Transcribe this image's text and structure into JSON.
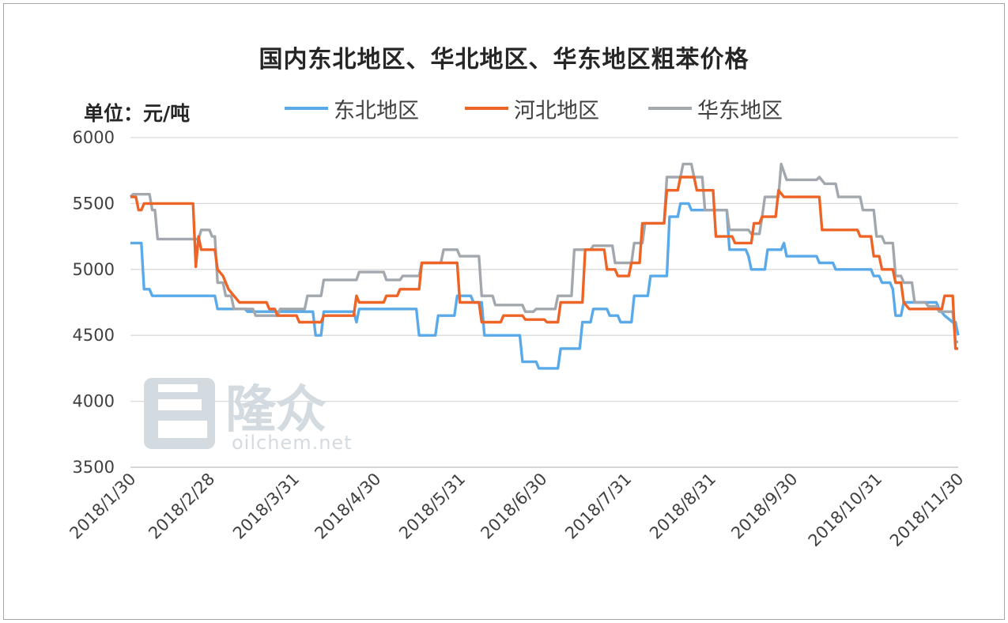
{
  "chart_data": {
    "type": "line",
    "title": "国内东北地区、华北地区、华东地区粗苯价格",
    "unit_label": "单位：元/吨",
    "ylim": [
      3500,
      6000
    ],
    "yticks": [
      3500,
      4000,
      4500,
      5000,
      5500,
      6000
    ],
    "xlim": [
      "2018/1/30",
      "2018/11/30"
    ],
    "xticks": [
      "2018/1/30",
      "2018/2/28",
      "2018/3/31",
      "2018/4/30",
      "2018/5/31",
      "2018/6/30",
      "2018/7/31",
      "2018/8/31",
      "2018/9/30",
      "2018/10/31",
      "2018/11/30"
    ],
    "grid": true,
    "legend_position": "top",
    "series": [
      {
        "name": "东北地区",
        "color": "#5aaae9",
        "points": [
          [
            "2018/1/30",
            5200
          ],
          [
            "2018/2/3",
            5200
          ],
          [
            "2018/2/4",
            4850
          ],
          [
            "2018/2/6",
            4850
          ],
          [
            "2018/2/7",
            4800
          ],
          [
            "2018/3/2",
            4800
          ],
          [
            "2018/3/3",
            4700
          ],
          [
            "2018/3/13",
            4700
          ],
          [
            "2018/3/14",
            4680
          ],
          [
            "2018/4/7",
            4680
          ],
          [
            "2018/4/8",
            4500
          ],
          [
            "2018/4/10",
            4500
          ],
          [
            "2018/4/11",
            4680
          ],
          [
            "2018/4/22",
            4680
          ],
          [
            "2018/4/23",
            4600
          ],
          [
            "2018/4/24",
            4700
          ],
          [
            "2018/5/15",
            4700
          ],
          [
            "2018/5/16",
            4500
          ],
          [
            "2018/5/22",
            4500
          ],
          [
            "2018/5/23",
            4650
          ],
          [
            "2018/5/29",
            4650
          ],
          [
            "2018/5/30",
            4800
          ],
          [
            "2018/6/4",
            4800
          ],
          [
            "2018/6/5",
            4750
          ],
          [
            "2018/6/8",
            4750
          ],
          [
            "2018/6/9",
            4500
          ],
          [
            "2018/6/22",
            4500
          ],
          [
            "2018/6/23",
            4300
          ],
          [
            "2018/6/28",
            4300
          ],
          [
            "2018/6/29",
            4250
          ],
          [
            "2018/7/6",
            4250
          ],
          [
            "2018/7/7",
            4400
          ],
          [
            "2018/7/14",
            4400
          ],
          [
            "2018/7/15",
            4600
          ],
          [
            "2018/7/18",
            4600
          ],
          [
            "2018/7/19",
            4700
          ],
          [
            "2018/7/24",
            4700
          ],
          [
            "2018/7/25",
            4650
          ],
          [
            "2018/7/28",
            4650
          ],
          [
            "2018/7/29",
            4600
          ],
          [
            "2018/8/2",
            4600
          ],
          [
            "2018/8/3",
            4800
          ],
          [
            "2018/8/8",
            4800
          ],
          [
            "2018/8/9",
            4950
          ],
          [
            "2018/8/15",
            4950
          ],
          [
            "2018/8/16",
            5400
          ],
          [
            "2018/8/19",
            5400
          ],
          [
            "2018/8/20",
            5500
          ],
          [
            "2018/8/23",
            5500
          ],
          [
            "2018/8/24",
            5450
          ],
          [
            "2018/9/6",
            5450
          ],
          [
            "2018/9/7",
            5150
          ],
          [
            "2018/9/13",
            5150
          ],
          [
            "2018/9/14",
            5100
          ],
          [
            "2018/9/15",
            5000
          ],
          [
            "2018/9/20",
            5000
          ],
          [
            "2018/9/21",
            5150
          ],
          [
            "2018/9/26",
            5150
          ],
          [
            "2018/9/27",
            5200
          ],
          [
            "2018/9/28",
            5100
          ],
          [
            "2018/10/9",
            5100
          ],
          [
            "2018/10/10",
            5050
          ],
          [
            "2018/10/15",
            5050
          ],
          [
            "2018/10/16",
            5000
          ],
          [
            "2018/10/29",
            5000
          ],
          [
            "2018/10/30",
            4950
          ],
          [
            "2018/11/1",
            4950
          ],
          [
            "2018/11/2",
            4900
          ],
          [
            "2018/11/5",
            4900
          ],
          [
            "2018/11/6",
            4850
          ],
          [
            "2018/11/7",
            4650
          ],
          [
            "2018/11/9",
            4650
          ],
          [
            "2018/11/10",
            4750
          ],
          [
            "2018/11/22",
            4750
          ],
          [
            "2018/11/23",
            4700
          ],
          [
            "2018/11/25",
            4650
          ],
          [
            "2018/11/28",
            4600
          ],
          [
            "2018/11/29",
            4600
          ],
          [
            "2018/11/30",
            4500
          ]
        ]
      },
      {
        "name": "河北地区",
        "color": "#ed6426",
        "points": [
          [
            "2018/1/30",
            5550
          ],
          [
            "2018/2/1",
            5550
          ],
          [
            "2018/2/2",
            5450
          ],
          [
            "2018/2/3",
            5450
          ],
          [
            "2018/2/4",
            5500
          ],
          [
            "2018/2/22",
            5500
          ],
          [
            "2018/2/23",
            5020
          ],
          [
            "2018/2/24",
            5250
          ],
          [
            "2018/2/25",
            5150
          ],
          [
            "2018/3/2",
            5150
          ],
          [
            "2018/3/3",
            5000
          ],
          [
            "2018/3/5",
            4950
          ],
          [
            "2018/3/7",
            4850
          ],
          [
            "2018/3/9",
            4800
          ],
          [
            "2018/3/11",
            4750
          ],
          [
            "2018/3/21",
            4750
          ],
          [
            "2018/3/22",
            4700
          ],
          [
            "2018/3/24",
            4700
          ],
          [
            "2018/3/25",
            4650
          ],
          [
            "2018/4/1",
            4650
          ],
          [
            "2018/4/2",
            4600
          ],
          [
            "2018/4/10",
            4600
          ],
          [
            "2018/4/11",
            4650
          ],
          [
            "2018/4/22",
            4650
          ],
          [
            "2018/4/23",
            4800
          ],
          [
            "2018/4/24",
            4750
          ],
          [
            "2018/5/3",
            4750
          ],
          [
            "2018/5/4",
            4800
          ],
          [
            "2018/5/8",
            4800
          ],
          [
            "2018/5/9",
            4850
          ],
          [
            "2018/5/16",
            4850
          ],
          [
            "2018/5/17",
            5050
          ],
          [
            "2018/5/30",
            5050
          ],
          [
            "2018/5/31",
            4750
          ],
          [
            "2018/6/7",
            4750
          ],
          [
            "2018/6/8",
            4600
          ],
          [
            "2018/6/15",
            4600
          ],
          [
            "2018/6/16",
            4650
          ],
          [
            "2018/6/23",
            4650
          ],
          [
            "2018/6/24",
            4620
          ],
          [
            "2018/7/1",
            4620
          ],
          [
            "2018/7/2",
            4600
          ],
          [
            "2018/7/6",
            4600
          ],
          [
            "2018/7/7",
            4750
          ],
          [
            "2018/7/15",
            4750
          ],
          [
            "2018/7/16",
            5150
          ],
          [
            "2018/7/23",
            5150
          ],
          [
            "2018/7/24",
            5000
          ],
          [
            "2018/7/27",
            5000
          ],
          [
            "2018/7/28",
            4950
          ],
          [
            "2018/8/1",
            4950
          ],
          [
            "2018/8/2",
            5050
          ],
          [
            "2018/8/5",
            5050
          ],
          [
            "2018/8/6",
            5350
          ],
          [
            "2018/8/14",
            5350
          ],
          [
            "2018/8/15",
            5600
          ],
          [
            "2018/8/19",
            5600
          ],
          [
            "2018/8/20",
            5700
          ],
          [
            "2018/8/25",
            5700
          ],
          [
            "2018/8/26",
            5600
          ],
          [
            "2018/9/1",
            5600
          ],
          [
            "2018/9/2",
            5250
          ],
          [
            "2018/9/8",
            5250
          ],
          [
            "2018/9/9",
            5200
          ],
          [
            "2018/9/15",
            5200
          ],
          [
            "2018/9/16",
            5350
          ],
          [
            "2018/9/18",
            5350
          ],
          [
            "2018/9/19",
            5400
          ],
          [
            "2018/9/24",
            5400
          ],
          [
            "2018/9/25",
            5600
          ],
          [
            "2018/9/27",
            5550
          ],
          [
            "2018/10/10",
            5550
          ],
          [
            "2018/10/11",
            5300
          ],
          [
            "2018/10/24",
            5300
          ],
          [
            "2018/10/25",
            5250
          ],
          [
            "2018/10/29",
            5250
          ],
          [
            "2018/10/30",
            5100
          ],
          [
            "2018/11/1",
            5100
          ],
          [
            "2018/11/2",
            5000
          ],
          [
            "2018/11/6",
            5000
          ],
          [
            "2018/11/7",
            4900
          ],
          [
            "2018/11/9",
            4900
          ],
          [
            "2018/11/10",
            4750
          ],
          [
            "2018/11/12",
            4700
          ],
          [
            "2018/11/24",
            4700
          ],
          [
            "2018/11/25",
            4800
          ],
          [
            "2018/11/28",
            4800
          ],
          [
            "2018/11/29",
            4400
          ],
          [
            "2018/11/30",
            4400
          ]
        ]
      },
      {
        "name": "华东地区",
        "color": "#a2a8ad",
        "points": [
          [
            "2018/1/30",
            5550
          ],
          [
            "2018/1/31",
            5570
          ],
          [
            "2018/2/6",
            5570
          ],
          [
            "2018/2/7",
            5450
          ],
          [
            "2018/2/8",
            5450
          ],
          [
            "2018/2/9",
            5230
          ],
          [
            "2018/2/24",
            5230
          ],
          [
            "2018/2/25",
            5300
          ],
          [
            "2018/2/28",
            5300
          ],
          [
            "2018/3/1",
            5250
          ],
          [
            "2018/3/2",
            5250
          ],
          [
            "2018/3/3",
            4900
          ],
          [
            "2018/3/5",
            4900
          ],
          [
            "2018/3/6",
            4800
          ],
          [
            "2018/3/8",
            4800
          ],
          [
            "2018/3/9",
            4700
          ],
          [
            "2018/3/16",
            4700
          ],
          [
            "2018/3/17",
            4650
          ],
          [
            "2018/3/25",
            4650
          ],
          [
            "2018/3/26",
            4700
          ],
          [
            "2018/4/4",
            4700
          ],
          [
            "2018/4/5",
            4800
          ],
          [
            "2018/4/10",
            4800
          ],
          [
            "2018/4/11",
            4920
          ],
          [
            "2018/4/23",
            4920
          ],
          [
            "2018/4/24",
            4980
          ],
          [
            "2018/5/3",
            4980
          ],
          [
            "2018/5/4",
            4920
          ],
          [
            "2018/5/9",
            4920
          ],
          [
            "2018/5/10",
            4950
          ],
          [
            "2018/5/16",
            4950
          ],
          [
            "2018/5/17",
            5050
          ],
          [
            "2018/5/24",
            5050
          ],
          [
            "2018/5/25",
            5150
          ],
          [
            "2018/5/30",
            5150
          ],
          [
            "2018/5/31",
            5100
          ],
          [
            "2018/6/7",
            5100
          ],
          [
            "2018/6/8",
            4800
          ],
          [
            "2018/6/12",
            4800
          ],
          [
            "2018/6/13",
            4730
          ],
          [
            "2018/6/23",
            4730
          ],
          [
            "2018/6/24",
            4680
          ],
          [
            "2018/6/27",
            4680
          ],
          [
            "2018/6/28",
            4700
          ],
          [
            "2018/7/5",
            4700
          ],
          [
            "2018/7/6",
            4800
          ],
          [
            "2018/7/11",
            4800
          ],
          [
            "2018/7/12",
            5150
          ],
          [
            "2018/7/18",
            5150
          ],
          [
            "2018/7/19",
            5180
          ],
          [
            "2018/7/26",
            5180
          ],
          [
            "2018/7/27",
            5050
          ],
          [
            "2018/8/2",
            5050
          ],
          [
            "2018/8/3",
            5200
          ],
          [
            "2018/8/6",
            5200
          ],
          [
            "2018/8/7",
            5350
          ],
          [
            "2018/8/14",
            5350
          ],
          [
            "2018/8/15",
            5700
          ],
          [
            "2018/8/20",
            5700
          ],
          [
            "2018/8/21",
            5800
          ],
          [
            "2018/8/24",
            5800
          ],
          [
            "2018/8/25",
            5700
          ],
          [
            "2018/8/28",
            5700
          ],
          [
            "2018/8/29",
            5450
          ],
          [
            "2018/9/6",
            5450
          ],
          [
            "2018/9/7",
            5300
          ],
          [
            "2018/9/14",
            5300
          ],
          [
            "2018/9/15",
            5270
          ],
          [
            "2018/9/18",
            5270
          ],
          [
            "2018/9/19",
            5400
          ],
          [
            "2018/9/20",
            5550
          ],
          [
            "2018/9/25",
            5550
          ],
          [
            "2018/9/26",
            5800
          ],
          [
            "2018/9/28",
            5680
          ],
          [
            "2018/10/9",
            5680
          ],
          [
            "2018/10/10",
            5700
          ],
          [
            "2018/10/12",
            5650
          ],
          [
            "2018/10/16",
            5650
          ],
          [
            "2018/10/17",
            5550
          ],
          [
            "2018/10/25",
            5550
          ],
          [
            "2018/10/26",
            5450
          ],
          [
            "2018/10/30",
            5450
          ],
          [
            "2018/10/31",
            5250
          ],
          [
            "2018/11/2",
            5250
          ],
          [
            "2018/11/3",
            5200
          ],
          [
            "2018/11/6",
            5200
          ],
          [
            "2018/11/7",
            4950
          ],
          [
            "2018/11/9",
            4950
          ],
          [
            "2018/11/10",
            4900
          ],
          [
            "2018/11/13",
            4900
          ],
          [
            "2018/11/14",
            4750
          ],
          [
            "2018/11/18",
            4750
          ],
          [
            "2018/11/19",
            4720
          ],
          [
            "2018/11/22",
            4720
          ],
          [
            "2018/11/23",
            4680
          ],
          [
            "2018/11/28",
            4680
          ],
          [
            "2018/11/29",
            4450
          ],
          [
            "2018/11/30",
            4450
          ]
        ]
      }
    ]
  },
  "watermark": {
    "brand": "隆众",
    "site": "oilchem.net"
  }
}
